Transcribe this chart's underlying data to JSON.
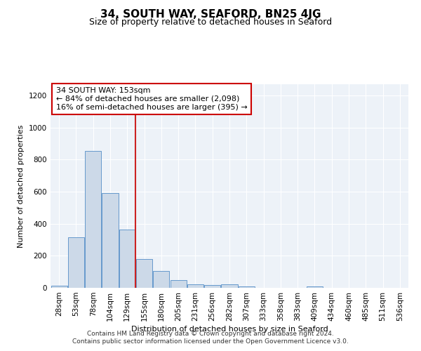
{
  "title": "34, SOUTH WAY, SEAFORD, BN25 4JG",
  "subtitle": "Size of property relative to detached houses in Seaford",
  "xlabel": "Distribution of detached houses by size in Seaford",
  "ylabel": "Number of detached properties",
  "footnote1": "Contains HM Land Registry data © Crown copyright and database right 2024.",
  "footnote2": "Contains public sector information licensed under the Open Government Licence v3.0.",
  "bar_color": "#ccd9e8",
  "bar_edge_color": "#6699cc",
  "bar_categories": [
    "28sqm",
    "53sqm",
    "78sqm",
    "104sqm",
    "129sqm",
    "155sqm",
    "180sqm",
    "205sqm",
    "231sqm",
    "256sqm",
    "282sqm",
    "307sqm",
    "333sqm",
    "358sqm",
    "383sqm",
    "409sqm",
    "434sqm",
    "460sqm",
    "485sqm",
    "511sqm",
    "536sqm"
  ],
  "bar_values": [
    15,
    315,
    855,
    590,
    365,
    180,
    105,
    47,
    20,
    18,
    20,
    10,
    0,
    0,
    0,
    10,
    0,
    0,
    0,
    0,
    0
  ],
  "ylim": [
    0,
    1270
  ],
  "yticks": [
    0,
    200,
    400,
    600,
    800,
    1000,
    1200
  ],
  "property_line_x": 4.5,
  "property_label": "34 SOUTH WAY: 153sqm",
  "annotation_line1": "← 84% of detached houses are smaller (2,098)",
  "annotation_line2": "16% of semi-detached houses are larger (395) →",
  "red_line_color": "#cc2222",
  "annotation_border_color": "#cc0000",
  "background_color": "#edf2f8",
  "title_fontsize": 11,
  "subtitle_fontsize": 9,
  "axis_label_fontsize": 8,
  "tick_fontsize": 7.5
}
